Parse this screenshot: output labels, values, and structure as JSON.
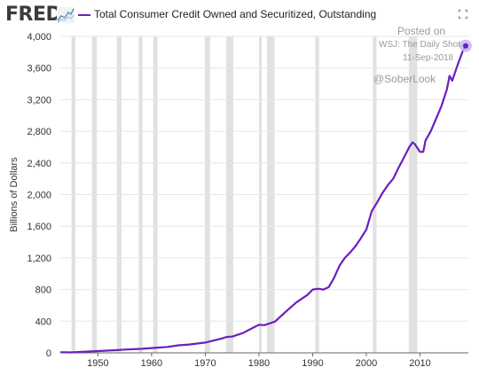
{
  "header": {
    "logo": "FRED",
    "logo_icon": "line-chart-icon",
    "expand_icon": "expand-icon"
  },
  "annotations": {
    "posted_on": "Posted on",
    "source": "WSJ: The Daily Shot",
    "date": "11-Sep-2018",
    "handle": "@SoberLook"
  },
  "colors": {
    "series": "#6a1fbf",
    "recession": "#e1e1e1",
    "grid": "#e6e6e6",
    "marker_halo": "#cdb3ee"
  },
  "chart_data": {
    "type": "line",
    "title": "Total Consumer Credit Owned and Securitized, Outstanding",
    "xlabel": "",
    "ylabel": "Billions of Dollars",
    "xlim": [
      1943,
      2019
    ],
    "ylim": [
      0,
      4000
    ],
    "x_ticks": [
      1950,
      1960,
      1970,
      1980,
      1990,
      2000,
      2010
    ],
    "y_ticks": [
      0,
      400,
      800,
      1200,
      1600,
      2000,
      2400,
      2800,
      3200,
      3600,
      4000
    ],
    "y_tick_labels": [
      "0",
      "400",
      "800",
      "1,200",
      "1,600",
      "2,000",
      "2,400",
      "2,800",
      "3,200",
      "3,600",
      "4,000"
    ],
    "grid": true,
    "legend": "top-left",
    "recessions": [
      [
        1945.1,
        1945.8
      ],
      [
        1948.9,
        1949.8
      ],
      [
        1953.5,
        1954.4
      ],
      [
        1957.6,
        1958.3
      ],
      [
        1960.3,
        1961.1
      ],
      [
        1969.9,
        1970.9
      ],
      [
        1973.9,
        1975.2
      ],
      [
        1980.0,
        1980.5
      ],
      [
        1981.5,
        1982.9
      ],
      [
        1990.5,
        1991.2
      ],
      [
        2001.2,
        2001.9
      ],
      [
        2007.9,
        2009.5
      ]
    ],
    "series": [
      {
        "name": "Total Consumer Credit Owned and Securitized, Outstanding",
        "x": [
          1943,
          1945,
          1947,
          1950,
          1953,
          1955,
          1958,
          1960,
          1963,
          1965,
          1967,
          1970,
          1973,
          1974,
          1975,
          1977,
          1979,
          1980,
          1981,
          1983,
          1985,
          1987,
          1989,
          1990,
          1991,
          1992,
          1993,
          1994,
          1995,
          1996,
          1997,
          1998,
          1999,
          2000,
          2001,
          2002,
          2003,
          2004,
          2005,
          2006,
          2007,
          2008,
          2008.6,
          2009,
          2010,
          2010.6,
          2011,
          2012,
          2013,
          2014,
          2015,
          2015.5,
          2016,
          2017,
          2018,
          2018.5
        ],
        "values": [
          8,
          6,
          12,
          22,
          32,
          42,
          50,
          60,
          75,
          95,
          105,
          130,
          180,
          200,
          205,
          250,
          320,
          355,
          350,
          395,
          520,
          640,
          730,
          800,
          810,
          800,
          830,
          950,
          1100,
          1200,
          1270,
          1350,
          1450,
          1560,
          1790,
          1900,
          2020,
          2120,
          2200,
          2340,
          2470,
          2600,
          2660,
          2640,
          2540,
          2540,
          2680,
          2800,
          2960,
          3120,
          3330,
          3500,
          3440,
          3640,
          3820,
          3880
        ]
      }
    ]
  }
}
